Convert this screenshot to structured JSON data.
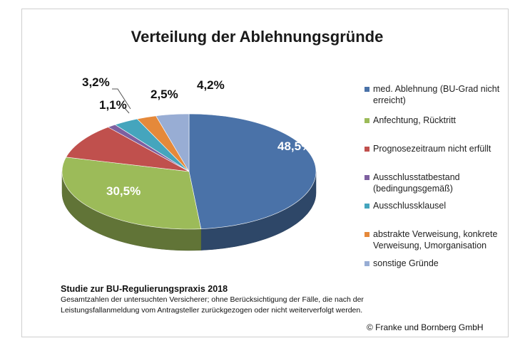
{
  "chart_data": {
    "type": "pie",
    "title": "Verteilung der Ablehnungsgründe",
    "categories": [
      "med. Ablehnung (BU-Grad nicht erreicht)",
      "Anfechtung, Rücktritt",
      "Prognosezeitraum nicht erfüllt",
      "Ausschlusstatbestand (bedingungsgemäß)",
      "Ausschlussklausel",
      "abstrakte Verweisung, konkrete Verweisung, Umorganisation",
      "sonstige Gründe"
    ],
    "legend_lines": [
      [
        "med. Ablehnung (BU-Grad nicht",
        "erreicht)"
      ],
      [
        "Anfechtung, Rücktritt"
      ],
      [
        "Prognosezeitraum nicht erfüllt"
      ],
      [
        "Ausschlusstatbestand",
        "(bedingungsgemäß)"
      ],
      [
        "Ausschlussklausel"
      ],
      [
        "abstrakte Verweisung, konkrete",
        "Verweisung, Umorganisation"
      ],
      [
        "sonstige Gründe"
      ]
    ],
    "values": [
      48.5,
      30.5,
      10.0,
      1.1,
      3.2,
      2.5,
      4.2
    ],
    "data_labels": [
      "48,5%",
      "30,5%",
      "",
      "1,1%",
      "3,2%",
      "2,5%",
      "4,2%"
    ],
    "colors": [
      "#4a72a8",
      "#9cbb59",
      "#c0504d",
      "#7e60a0",
      "#45a5bd",
      "#e5893a",
      "#98add4"
    ],
    "legend_position": "right",
    "style": "3d"
  },
  "footer": {
    "study": "Studie zur BU-Regulierungspraxis 2018",
    "note_line1": "Gesamtzahlen der untersuchten Versicherer; ohne Berücksichtigung der Fälle, die nach der",
    "note_line2": "Leistungsfallanmeldung vom Antragsteller zurückgezogen oder nicht weiterverfolgt werden.",
    "copyright": "© Franke und Bornberg GmbH"
  }
}
